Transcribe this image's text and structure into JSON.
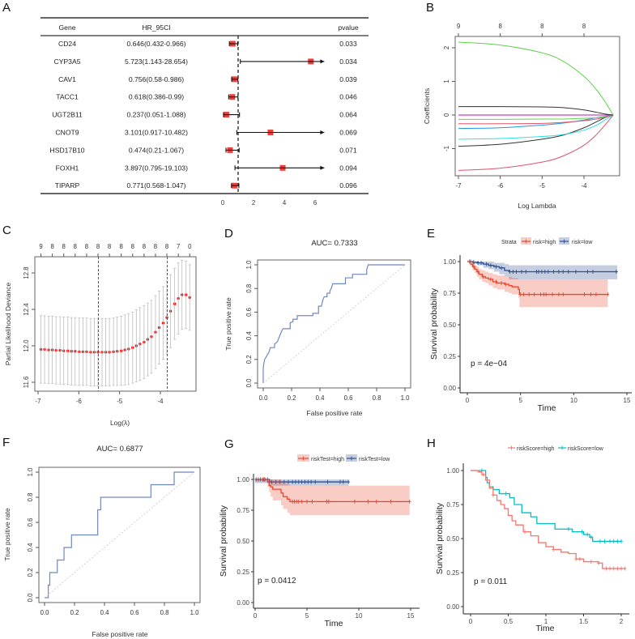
{
  "chart_data": [
    {
      "panel": "A",
      "type": "forest",
      "headers": {
        "gene": "Gene",
        "hr": "HR_95CI",
        "pvalue": "pvalue"
      },
      "rows": [
        {
          "gene": "CD24",
          "hr_95ci": "0.646(0.432-0.966)",
          "pvalue": "0.033",
          "hr": 0.646,
          "lower": 0.432,
          "upper": 0.966
        },
        {
          "gene": "CYP3A5",
          "hr_95ci": "5.723(1.143-28.654)",
          "pvalue": "0.034",
          "hr": 5.723,
          "lower": 1.143,
          "upper": 28.654
        },
        {
          "gene": "CAV1",
          "hr_95ci": "0.756(0.58-0.986)",
          "pvalue": "0.039",
          "hr": 0.756,
          "lower": 0.58,
          "upper": 0.986
        },
        {
          "gene": "TACC1",
          "hr_95ci": "0.618(0.386-0.99)",
          "pvalue": "0.046",
          "hr": 0.618,
          "lower": 0.386,
          "upper": 0.99
        },
        {
          "gene": "UGT2B11",
          "hr_95ci": "0.237(0.051-1.088)",
          "pvalue": "0.064",
          "hr": 0.237,
          "lower": 0.051,
          "upper": 1.088
        },
        {
          "gene": "CNOT9",
          "hr_95ci": "3.101(0.917-10.482)",
          "pvalue": "0.069",
          "hr": 3.101,
          "lower": 0.917,
          "upper": 10.482
        },
        {
          "gene": "HSD17B10",
          "hr_95ci": "0.474(0.21-1.067)",
          "pvalue": "0.071",
          "hr": 0.474,
          "lower": 0.21,
          "upper": 1.067
        },
        {
          "gene": "FOXH1",
          "hr_95ci": "3.897(0.795-19.103)",
          "pvalue": "0.094",
          "hr": 3.897,
          "lower": 0.795,
          "upper": 19.103
        },
        {
          "gene": "TIPARP",
          "hr_95ci": "0.771(0.568-1.047)",
          "pvalue": "0.096",
          "hr": 0.771,
          "lower": 0.568,
          "upper": 1.047
        }
      ],
      "x_ticks": [
        0,
        2,
        4,
        6
      ],
      "xlim": [
        0,
        6.6
      ],
      "reference_line": 1,
      "box_color": "#E8413C"
    },
    {
      "panel": "B",
      "type": "line",
      "xlabel": "Log Lambda",
      "ylabel": "Coefficients",
      "x_ticks": [
        -7,
        -6,
        -5,
        -4
      ],
      "y_ticks": [
        -1,
        0,
        1,
        2
      ],
      "top_ticks": {
        "at": [
          -7,
          -6,
          -5,
          -4
        ],
        "labels": [
          "9",
          "8",
          "8",
          "8"
        ]
      },
      "x": [
        -7,
        -6,
        -5,
        -4.5,
        -4,
        -3.7,
        -3.5,
        -3.3
      ],
      "series": [
        {
          "color": "#61D04F",
          "values": [
            2.17,
            2.08,
            1.85,
            1.6,
            1.15,
            0.75,
            0.4,
            0
          ]
        },
        {
          "color": "#333333",
          "values": [
            0.25,
            0.25,
            0.24,
            0.22,
            0.15,
            0.08,
            0.03,
            0
          ]
        },
        {
          "color": "#CD0BBC",
          "values": [
            0,
            0,
            0,
            0,
            0,
            0,
            0,
            0
          ]
        },
        {
          "color": "#61D04F",
          "values": [
            -0.13,
            -0.13,
            -0.12,
            -0.12,
            -0.1,
            -0.08,
            -0.05,
            0
          ]
        },
        {
          "color": "#DF536B",
          "values": [
            -0.26,
            -0.26,
            -0.25,
            -0.22,
            -0.17,
            -0.12,
            -0.07,
            0
          ]
        },
        {
          "color": "#2297E6",
          "values": [
            -0.4,
            -0.38,
            -0.3,
            -0.24,
            -0.15,
            -0.08,
            -0.04,
            0
          ]
        },
        {
          "color": "#28E2E5",
          "values": [
            -0.72,
            -0.7,
            -0.64,
            -0.58,
            -0.45,
            -0.3,
            -0.15,
            0
          ]
        },
        {
          "color": "#333333",
          "values": [
            -0.93,
            -0.87,
            -0.72,
            -0.6,
            -0.38,
            -0.2,
            -0.08,
            0
          ]
        },
        {
          "color": "#DF536B",
          "values": [
            -1.65,
            -1.58,
            -1.4,
            -1.22,
            -0.9,
            -0.58,
            -0.3,
            0
          ]
        }
      ]
    },
    {
      "panel": "C",
      "type": "scatter",
      "xlabel": "Log(λ)",
      "ylabel": "Partial Likelihood Deviance",
      "x_ticks": [
        -7,
        -6,
        -5,
        -4
      ],
      "y_ticks": [
        11.6,
        12.0,
        12.4,
        12.8
      ],
      "vlines": [
        -5.52,
        -3.83
      ],
      "top_ticks": {
        "at": [
          -6.93,
          -6.65,
          -6.37,
          -6.09,
          -5.81,
          -5.53,
          -5.25,
          -4.96,
          -4.68,
          -4.4,
          -4.12,
          -3.84,
          -3.56,
          -3.28
        ],
        "labels": [
          "9",
          "8",
          "8",
          "8",
          "8",
          "8",
          "8",
          "8",
          "8",
          "8",
          "8",
          "8",
          "7",
          "0"
        ]
      },
      "x": [
        -6.93,
        -6.84,
        -6.74,
        -6.65,
        -6.56,
        -6.46,
        -6.37,
        -6.27,
        -6.18,
        -6.09,
        -5.99,
        -5.9,
        -5.81,
        -5.71,
        -5.62,
        -5.53,
        -5.43,
        -5.34,
        -5.25,
        -5.15,
        -5.06,
        -4.96,
        -4.87,
        -4.78,
        -4.68,
        -4.59,
        -4.5,
        -4.4,
        -4.31,
        -4.22,
        -4.12,
        -4.03,
        -3.93,
        -3.84,
        -3.75,
        -3.65,
        -3.56,
        -3.47,
        -3.37,
        -3.28
      ],
      "mean": [
        11.96,
        11.96,
        11.955,
        11.955,
        11.95,
        11.95,
        11.945,
        11.945,
        11.94,
        11.94,
        11.935,
        11.935,
        11.935,
        11.93,
        11.93,
        11.93,
        11.93,
        11.93,
        11.93,
        11.935,
        11.94,
        11.945,
        11.955,
        11.965,
        11.98,
        12.0,
        12.02,
        12.04,
        12.07,
        12.1,
        12.15,
        12.2,
        12.25,
        12.31,
        12.38,
        12.46,
        12.52,
        12.56,
        12.56,
        12.53
      ],
      "sd": [
        0.37,
        0.37,
        0.37,
        0.37,
        0.37,
        0.37,
        0.37,
        0.37,
        0.37,
        0.37,
        0.37,
        0.37,
        0.37,
        0.37,
        0.37,
        0.37,
        0.37,
        0.37,
        0.37,
        0.37,
        0.375,
        0.38,
        0.385,
        0.39,
        0.39,
        0.395,
        0.4,
        0.4,
        0.4,
        0.4,
        0.4,
        0.4,
        0.4,
        0.4,
        0.4,
        0.39,
        0.39,
        0.38,
        0.37,
        0.36
      ],
      "point_color": "#FF0000"
    },
    {
      "panel": "D",
      "type": "line",
      "title": "AUC= 0.7333",
      "xlabel": "False positive rate",
      "ylabel": "True positive rate",
      "x_ticks": [
        0,
        0.2,
        0.4,
        0.6,
        0.8,
        1.0
      ],
      "y_ticks": [
        0,
        0.2,
        0.4,
        0.6,
        0.8,
        1.0
      ],
      "fpr": [
        0,
        0,
        0.005,
        0.01,
        0.02,
        0.03,
        0.04,
        0.05,
        0.08,
        0.08,
        0.1,
        0.11,
        0.12,
        0.13,
        0.14,
        0.19,
        0.19,
        0.21,
        0.21,
        0.24,
        0.24,
        0.35,
        0.35,
        0.39,
        0.39,
        0.41,
        0.42,
        0.43,
        0.45,
        0.45,
        0.47,
        0.47,
        0.48,
        0.49,
        0.58,
        0.58,
        0.63,
        0.63,
        0.73,
        0.73,
        0.74,
        1.0
      ],
      "tpr": [
        0,
        0.13,
        0.17,
        0.2,
        0.22,
        0.24,
        0.26,
        0.3,
        0.3,
        0.33,
        0.35,
        0.38,
        0.41,
        0.44,
        0.46,
        0.46,
        0.51,
        0.52,
        0.54,
        0.54,
        0.57,
        0.57,
        0.59,
        0.59,
        0.65,
        0.65,
        0.7,
        0.73,
        0.73,
        0.76,
        0.76,
        0.78,
        0.8,
        0.84,
        0.84,
        0.89,
        0.89,
        0.92,
        0.92,
        0.96,
        1.0,
        1.0
      ],
      "color": "#7088C0"
    },
    {
      "panel": "E",
      "type": "line",
      "xlabel": "Time",
      "ylabel": "Survival probability",
      "x_ticks": [
        0,
        5,
        10,
        15
      ],
      "y_ticks": [
        0,
        0.25,
        0.5,
        0.75,
        1.0
      ],
      "y_tick_labels": [
        "0.00",
        "0.25",
        "0.50",
        "0.75",
        "1.00"
      ],
      "legend_title": "Strata",
      "pvalue": "p = 4e−04",
      "series": [
        {
          "name": "risk=high",
          "color": "#E8472E",
          "time": [
            0,
            0.3,
            0.5,
            0.7,
            0.9,
            1.1,
            1.4,
            1.7,
            2.0,
            2.4,
            2.8,
            3.5,
            3.9,
            4.2,
            4.8,
            4.9,
            13.2
          ],
          "surv": [
            1,
            0.98,
            0.96,
            0.94,
            0.92,
            0.9,
            0.88,
            0.87,
            0.86,
            0.84,
            0.83,
            0.82,
            0.81,
            0.8,
            0.78,
            0.74,
            0.74
          ],
          "lower": [
            1,
            0.96,
            0.93,
            0.91,
            0.88,
            0.86,
            0.84,
            0.83,
            0.81,
            0.79,
            0.78,
            0.76,
            0.75,
            0.74,
            0.71,
            0.64,
            0.64
          ],
          "upper": [
            1,
            1,
            0.99,
            0.97,
            0.96,
            0.94,
            0.93,
            0.92,
            0.91,
            0.9,
            0.89,
            0.88,
            0.88,
            0.87,
            0.86,
            0.86,
            0.86
          ],
          "censor": [
            0.2,
            0.6,
            1.0,
            1.5,
            2.2,
            2.7,
            3.2,
            3.6,
            5.0,
            5.3,
            5.8,
            6.3,
            6.9,
            7.2,
            7.4,
            8.0,
            8.6,
            9.0,
            11.0,
            11.6,
            12.1,
            13.2
          ]
        },
        {
          "name": "risk=low",
          "color": "#2F4F8F",
          "time": [
            0,
            0.5,
            1.0,
            1.5,
            2.0,
            2.5,
            3.0,
            3.5,
            3.9,
            14.1
          ],
          "surv": [
            1,
            0.995,
            0.99,
            0.98,
            0.97,
            0.96,
            0.95,
            0.93,
            0.92,
            0.92
          ],
          "lower": [
            1,
            0.98,
            0.97,
            0.95,
            0.94,
            0.92,
            0.9,
            0.88,
            0.86,
            0.86
          ],
          "upper": [
            1,
            1,
            1,
            1,
            1,
            0.99,
            0.99,
            0.98,
            0.97,
            0.97
          ],
          "censor": [
            0.3,
            0.6,
            1.0,
            1.3,
            1.8,
            2.2,
            2.7,
            3.2,
            4.0,
            4.3,
            4.6,
            5.1,
            5.5,
            6.5,
            6.7,
            7.0,
            7.3,
            7.6,
            8.1,
            8.6,
            9.0,
            9.5,
            10.2,
            11.3,
            11.8,
            14.0
          ]
        }
      ]
    },
    {
      "panel": "F",
      "type": "line",
      "title": "AUC= 0.6877",
      "xlabel": "False positive rate",
      "ylabel": "True positive rate",
      "x_ticks": [
        0,
        0.2,
        0.4,
        0.6,
        0.8,
        1.0
      ],
      "y_ticks": [
        0,
        0.2,
        0.4,
        0.6,
        0.8,
        1.0
      ],
      "fpr": [
        0,
        0.025,
        0.025,
        0.035,
        0.035,
        0.085,
        0.085,
        0.13,
        0.13,
        0.18,
        0.18,
        0.355,
        0.355,
        0.375,
        0.375,
        0.71,
        0.71,
        0.865,
        0.865,
        1.0
      ],
      "tpr": [
        0,
        0,
        0.1,
        0.1,
        0.2,
        0.2,
        0.3,
        0.3,
        0.4,
        0.4,
        0.5,
        0.5,
        0.7,
        0.7,
        0.8,
        0.8,
        0.9,
        0.9,
        1.0,
        1.0
      ],
      "color": "#7088C0"
    },
    {
      "panel": "G",
      "type": "line",
      "xlabel": "Time",
      "ylabel": "Survival probability",
      "x_ticks": [
        0,
        5,
        10,
        15
      ],
      "y_ticks": [
        0,
        0.25,
        0.5,
        0.75,
        1.0
      ],
      "y_tick_labels": [
        "0.00",
        "0.25",
        "0.50",
        "0.75",
        "1.00"
      ],
      "pvalue": "p = 0.0412",
      "series": [
        {
          "name": "riskTest=high",
          "color": "#E8472E",
          "time": [
            0,
            1.2,
            1.35,
            1.5,
            1.7,
            2.5,
            2.7,
            3.1,
            3.35,
            14.9
          ],
          "surv": [
            1,
            0.98,
            0.95,
            0.94,
            0.92,
            0.89,
            0.86,
            0.84,
            0.82,
            0.82
          ],
          "lower": [
            1,
            0.94,
            0.9,
            0.86,
            0.83,
            0.79,
            0.76,
            0.73,
            0.71,
            0.71
          ],
          "upper": [
            1,
            1,
            1,
            1,
            1,
            0.99,
            0.97,
            0.96,
            0.95,
            0.95
          ],
          "censor": [
            0.3,
            0.7,
            0.9,
            1.0,
            3.6,
            3.8,
            4.0,
            4.2,
            4.5,
            5.0,
            5.5,
            6.9,
            7.1,
            9.6,
            10.9,
            11.7,
            13.1,
            14.9
          ]
        },
        {
          "name": "riskTest=low",
          "color": "#2F4F8F",
          "time": [
            0,
            1.4,
            9.0
          ],
          "surv": [
            1,
            0.98,
            0.98
          ],
          "lower": [
            0.97,
            0.95,
            0.95
          ],
          "upper": [
            1,
            1,
            1
          ],
          "censor": [
            0.1,
            0.3,
            0.5,
            0.8,
            1.2,
            1.6,
            2.0,
            2.4,
            2.8,
            3.2,
            3.6,
            3.9,
            4.2,
            4.5,
            4.8,
            5.1,
            5.4,
            5.8,
            7.0,
            8.2,
            8.5,
            9.0
          ]
        }
      ]
    },
    {
      "panel": "H",
      "type": "line",
      "xlabel": "Time",
      "ylabel": "Survival probability",
      "x_ticks": [
        0,
        0.5,
        1,
        1.5,
        2
      ],
      "y_ticks": [
        0,
        0.25,
        0.5,
        0.75,
        1.0
      ],
      "y_tick_labels": [
        "0.00",
        "0.25",
        "0.50",
        "0.75",
        "1.00"
      ],
      "pvalue": "p = 0.011",
      "series": [
        {
          "name": "riskScore=high",
          "color": "#F8766D",
          "time": [
            0,
            0.1,
            0.15,
            0.2,
            0.25,
            0.3,
            0.35,
            0.4,
            0.45,
            0.5,
            0.55,
            0.6,
            0.7,
            0.8,
            0.9,
            1.0,
            1.1,
            1.2,
            1.3,
            1.4,
            1.5,
            1.6,
            1.7,
            1.75,
            2.05
          ],
          "surv": [
            1,
            0.99,
            0.97,
            0.93,
            0.87,
            0.82,
            0.78,
            0.75,
            0.72,
            0.67,
            0.63,
            0.6,
            0.55,
            0.52,
            0.47,
            0.44,
            0.42,
            0.4,
            0.39,
            0.35,
            0.33,
            0.33,
            0.32,
            0.28,
            0.28
          ],
          "censor": [
            0.17,
            0.3,
            0.72,
            1.1,
            1.4,
            1.45,
            1.6,
            1.7,
            1.8,
            1.85,
            1.9,
            1.95,
            2.0,
            2.05
          ]
        },
        {
          "name": "riskScore=low",
          "color": "#00BFC4",
          "time": [
            0,
            0.18,
            0.2,
            0.22,
            0.25,
            0.3,
            0.38,
            0.52,
            0.58,
            0.68,
            0.8,
            0.88,
            1.12,
            1.3,
            1.35,
            1.5,
            1.58,
            1.62,
            2.0
          ],
          "surv": [
            1,
            1,
            0.95,
            0.91,
            0.88,
            0.86,
            0.83,
            0.8,
            0.75,
            0.69,
            0.66,
            0.61,
            0.57,
            0.57,
            0.55,
            0.53,
            0.51,
            0.48,
            0.48
          ],
          "censor": [
            0.15,
            0.47,
            1.3,
            1.48,
            1.55,
            1.6,
            1.72,
            1.78,
            1.85,
            1.9,
            1.95,
            2.0
          ]
        }
      ]
    }
  ]
}
